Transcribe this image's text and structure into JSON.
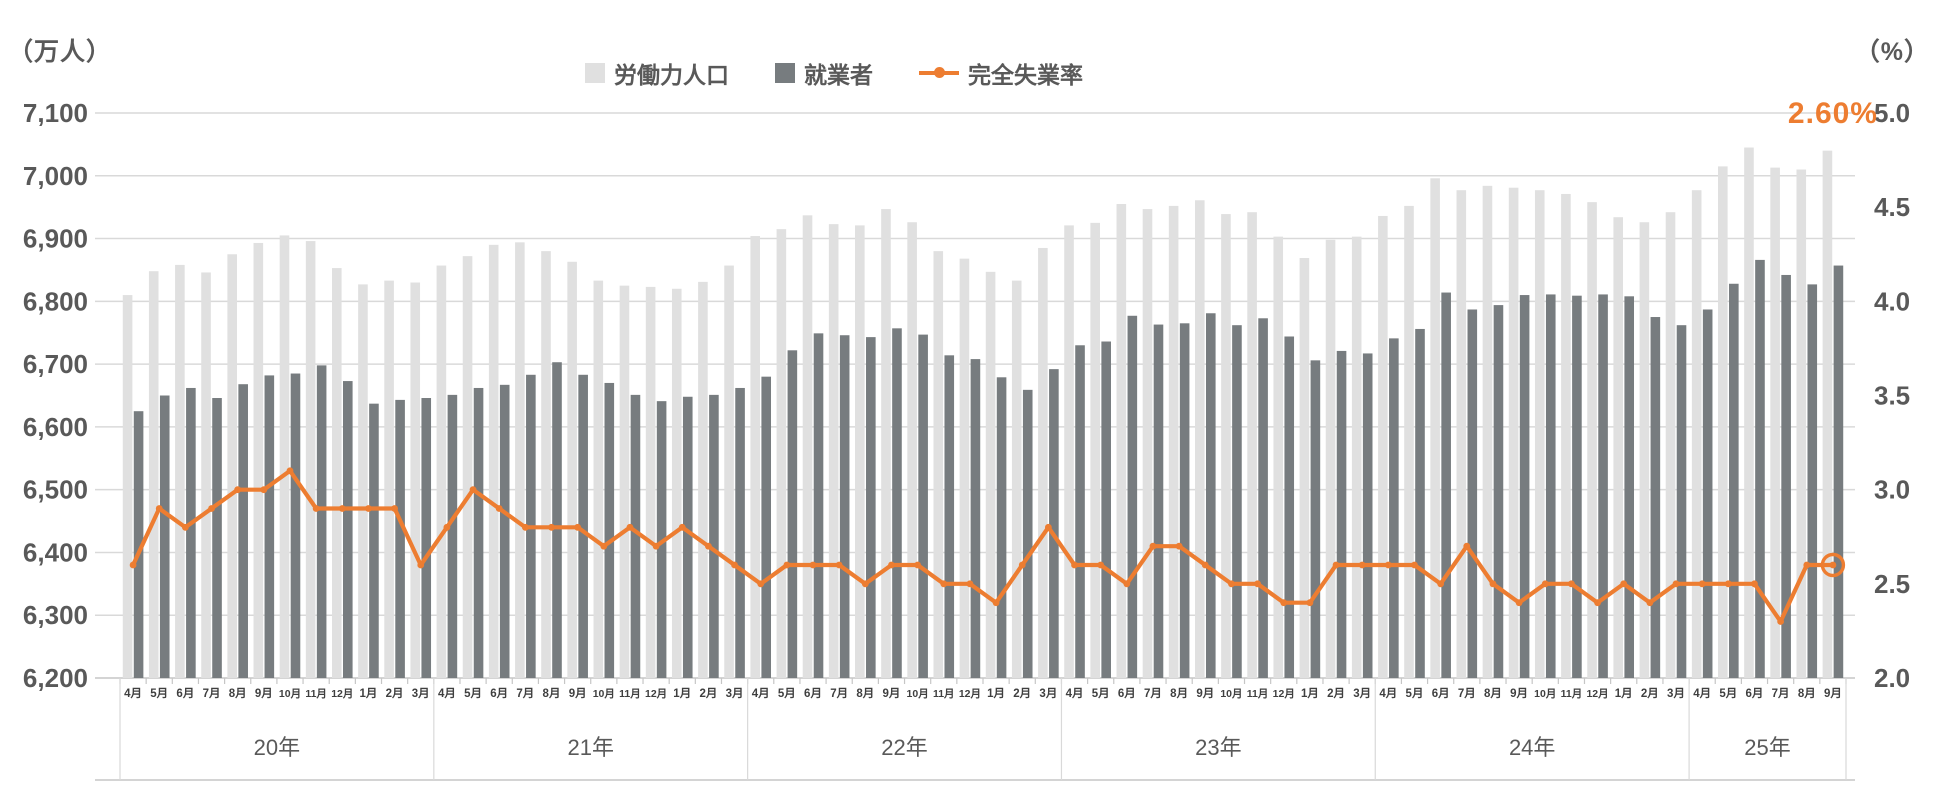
{
  "chart_data": {
    "type": "combo",
    "title": "",
    "left_axis": {
      "unit": "（万人）",
      "min": 6200,
      "max": 7100,
      "step": 100,
      "tick_labels": [
        "7,100",
        "7,000",
        "6,900",
        "6,800",
        "6,700",
        "6,600",
        "6,500",
        "6,400",
        "6,300",
        "6,200"
      ]
    },
    "right_axis": {
      "unit": "（%）",
      "min": 2.0,
      "max": 5.0,
      "step": 0.5,
      "tick_labels": [
        "5.0",
        "4.5",
        "4.0",
        "3.5",
        "3.0",
        "2.5",
        "2.0"
      ]
    },
    "grid": true,
    "legend_position": "top",
    "year_groups": [
      {
        "label": "20年",
        "months": [
          "4月",
          "5月",
          "6月",
          "7月",
          "8月",
          "9月",
          "10月",
          "11月",
          "12月",
          "1月",
          "2月",
          "3月"
        ]
      },
      {
        "label": "21年",
        "months": [
          "4月",
          "5月",
          "6月",
          "7月",
          "8月",
          "9月",
          "10月",
          "11月",
          "12月",
          "1月",
          "2月",
          "3月"
        ]
      },
      {
        "label": "22年",
        "months": [
          "4月",
          "5月",
          "6月",
          "7月",
          "8月",
          "9月",
          "10月",
          "11月",
          "12月",
          "1月",
          "2月",
          "3月"
        ]
      },
      {
        "label": "23年",
        "months": [
          "4月",
          "5月",
          "6月",
          "7月",
          "8月",
          "9月",
          "10月",
          "11月",
          "12月",
          "1月",
          "2月",
          "3月"
        ]
      },
      {
        "label": "24年",
        "months": [
          "4月",
          "5月",
          "6月",
          "7月",
          "8月",
          "9月",
          "10月",
          "11月",
          "12月",
          "1月",
          "2月",
          "3月"
        ]
      },
      {
        "label": "25年",
        "months": [
          "4月",
          "5月",
          "6月",
          "7月",
          "8月",
          "9月"
        ]
      }
    ],
    "bar_series": [
      {
        "name": "労働力人口",
        "color": "#e0e0e0",
        "values": [
          6810,
          6848,
          6858,
          6846,
          6875,
          6893,
          6905,
          6896,
          6853,
          6827,
          6833,
          6830,
          6857,
          6872,
          6890,
          6894,
          6880,
          6863,
          6833,
          6825,
          6823,
          6820,
          6831,
          6857,
          6904,
          6915,
          6937,
          6923,
          6921,
          6947,
          6926,
          6880,
          6868,
          6847,
          6833,
          6885,
          6921,
          6925,
          6955,
          6947,
          6952,
          6961,
          6939,
          6942,
          6903,
          6869,
          6898,
          6903,
          6936,
          6952,
          6996,
          6977,
          6984,
          6981,
          6977,
          6971,
          6958,
          6934,
          6926,
          6942,
          6977,
          7015,
          7045,
          7013,
          7010,
          7040
        ]
      },
      {
        "name": "就業者",
        "color": "#777c7f",
        "values": [
          6625,
          6650,
          6662,
          6646,
          6668,
          6682,
          6685,
          6698,
          6673,
          6637,
          6643,
          6646,
          6651,
          6662,
          6667,
          6683,
          6703,
          6683,
          6670,
          6651,
          6641,
          6648,
          6651,
          6662,
          6680,
          6722,
          6749,
          6746,
          6743,
          6757,
          6747,
          6714,
          6708,
          6679,
          6659,
          6692,
          6730,
          6736,
          6777,
          6763,
          6765,
          6781,
          6762,
          6773,
          6744,
          6706,
          6721,
          6717,
          6741,
          6756,
          6814,
          6787,
          6794,
          6810,
          6811,
          6809,
          6811,
          6808,
          6775,
          6762,
          6787,
          6828,
          6866,
          6842,
          6827,
          6857
        ]
      }
    ],
    "line_series": {
      "name": "完全失業率",
      "color": "#ed7d31",
      "values": [
        2.6,
        2.9,
        2.8,
        2.9,
        3.0,
        3.0,
        3.1,
        2.9,
        2.9,
        2.9,
        2.9,
        2.6,
        2.8,
        3.0,
        2.9,
        2.8,
        2.8,
        2.8,
        2.7,
        2.8,
        2.7,
        2.8,
        2.7,
        2.6,
        2.5,
        2.6,
        2.6,
        2.6,
        2.5,
        2.6,
        2.6,
        2.5,
        2.5,
        2.4,
        2.6,
        2.8,
        2.6,
        2.6,
        2.5,
        2.7,
        2.7,
        2.6,
        2.5,
        2.5,
        2.4,
        2.4,
        2.6,
        2.6,
        2.6,
        2.6,
        2.5,
        2.7,
        2.5,
        2.4,
        2.5,
        2.5,
        2.4,
        2.5,
        2.4,
        2.5,
        2.5,
        2.5,
        2.5,
        2.3,
        2.6,
        2.6
      ]
    },
    "annotation": {
      "text": "2.60%"
    }
  },
  "legend": [
    {
      "label": "労働力人口"
    },
    {
      "label": "就業者"
    },
    {
      "label": "完全失業率"
    }
  ],
  "colors": {
    "labor_force_bar": "#e0e0e0",
    "employed_bar": "#777c7f",
    "unemployment_line": "#ed7d31",
    "grid": "#d9d9d9",
    "axis": "#c6c6c6",
    "text": "#595959",
    "month_text": "#3f3f3f"
  }
}
